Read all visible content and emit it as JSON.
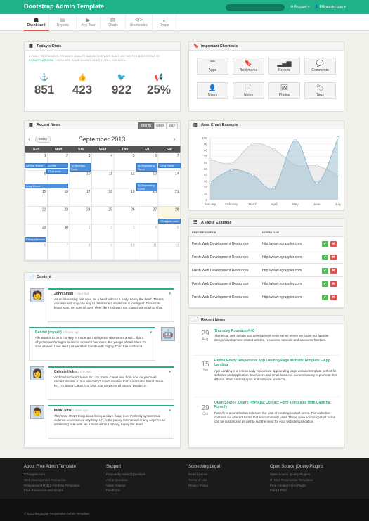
{
  "app": {
    "brand": "Bootstrap Admin Template",
    "account_label": "Account",
    "user_email": "EGrappler.com"
  },
  "tabs": [
    {
      "label": "Dashboard",
      "icon": "dashboard-icon",
      "glyph": "☗"
    },
    {
      "label": "Reports",
      "icon": "reports-icon",
      "glyph": "▤"
    },
    {
      "label": "App Tour",
      "icon": "app-tour-icon",
      "glyph": "▶"
    },
    {
      "label": "Charts",
      "icon": "charts-icon",
      "glyph": "▥"
    },
    {
      "label": "Shortcodes",
      "icon": "shortcodes-icon",
      "glyph": "</>"
    },
    {
      "label": "Drops",
      "icon": "drops-icon",
      "glyph": "⇣"
    }
  ],
  "stats": {
    "title": "Today's Stats",
    "intro": "A FULLY RESPONSIVE PREMIUM QUALITY ADMIN TEMPLATE BUILT ON TWITTER BOOTSTRAP BY",
    "intro_link": "EGRAPPLER.COM",
    "intro_tail": ". THESE ARE SOME DUMMY LINES TO FILL THE AREA.",
    "items": [
      {
        "value": "851",
        "icon": "anchor-icon",
        "glyph": "⚓"
      },
      {
        "value": "423",
        "icon": "thumbs-up-icon",
        "glyph": "👍"
      },
      {
        "value": "922",
        "icon": "twitter-icon",
        "glyph": "🐦"
      },
      {
        "value": "25%",
        "icon": "bullhorn-icon",
        "glyph": "📢"
      }
    ]
  },
  "shortcuts": {
    "title": "Important Shortcuts",
    "items": [
      {
        "label": "Apps",
        "icon": "list-icon",
        "glyph": "☰"
      },
      {
        "label": "Bookmarks",
        "icon": "bookmark-icon",
        "glyph": "🔖"
      },
      {
        "label": "Reports",
        "icon": "signal-icon",
        "glyph": "▂▄▆"
      },
      {
        "label": "Comments",
        "icon": "comment-icon",
        "glyph": "💬"
      },
      {
        "label": "Users",
        "icon": "user-icon",
        "glyph": "👤"
      },
      {
        "label": "Notes",
        "icon": "file-icon",
        "glyph": "📄"
      },
      {
        "label": "Photos",
        "icon": "picture-icon",
        "glyph": "🖼"
      },
      {
        "label": "Tags",
        "icon": "tag-icon",
        "glyph": "🏷"
      }
    ]
  },
  "calendar": {
    "panel_title": "Recent News",
    "views": [
      "month",
      "week",
      "day"
    ],
    "today_label": "today",
    "title": "September 2013",
    "days": [
      "Sun",
      "Mon",
      "Tue",
      "Wed",
      "Thu",
      "Fri",
      "Sat"
    ],
    "weeks": [
      [
        "1",
        "2",
        "3",
        "4",
        "5",
        "6",
        "7"
      ],
      [
        "8",
        "9",
        "10",
        "11",
        "12",
        "13",
        "14"
      ],
      [
        "15",
        "16",
        "17",
        "18",
        "19",
        "20",
        "21"
      ],
      [
        "22",
        "23",
        "24",
        "25",
        "26",
        "27",
        "28"
      ],
      [
        "29",
        "30",
        "1",
        "2",
        "3",
        "4",
        "5"
      ],
      [
        "6",
        "7",
        "8",
        "9",
        "10",
        "11",
        "12"
      ]
    ],
    "events": [
      {
        "label": "All Day Event"
      },
      {
        "label": "10:30a Meeting"
      },
      {
        "label": "12p Lunch"
      },
      {
        "label": "7p Birthday Party"
      },
      {
        "label": "4p Repeating Event"
      },
      {
        "label": "Long Event"
      },
      {
        "label": "Long Event"
      },
      {
        "label": "4p Repeating Event"
      },
      {
        "label": "EGrappler.com"
      },
      {
        "label": "EGrappler.com"
      }
    ]
  },
  "area_chart": {
    "title": "Area Chart Example"
  },
  "chart_data": {
    "type": "area",
    "categories": [
      "January",
      "February",
      "March",
      "April",
      "May",
      "June",
      "July"
    ],
    "series": [
      {
        "values": [
          65,
          59,
          90,
          81,
          56,
          55,
          40
        ]
      },
      {
        "values": [
          28,
          48,
          40,
          19,
          96,
          27,
          100
        ]
      }
    ],
    "ylim": [
      0,
      100
    ],
    "yticks": [
      0,
      10,
      20,
      30,
      40,
      50,
      60,
      70,
      80,
      90,
      100
    ],
    "colors": [
      "#dcdcdc",
      "#97bbcd"
    ]
  },
  "table": {
    "title": "A Table Example",
    "headers": [
      "FREE RESOURCE",
      "DOWNLOAD"
    ],
    "rows": [
      [
        "Fresh Web Development Resources",
        "http://www.egrappler.com"
      ],
      [
        "Fresh Web Development Resources",
        "http://www.egrappler.com"
      ],
      [
        "Fresh Web Development Resources",
        "http://www.egrappler.com"
      ],
      [
        "Fresh Web Development Resources",
        "http://www.egrappler.com"
      ],
      [
        "Fresh Web Development Resources",
        "http://www.egrappler.com"
      ]
    ]
  },
  "content": {
    "title": "Content",
    "messages": [
      {
        "name": "John Smith",
        "time": "1 hour ago",
        "body": "As an interesting side note, as a head without a body, I envy the dead. There's one way and only one way to determine if an animal is intelligent. Dissect its brain! Man, I'm sore all over. I feel like I just went ten rounds with mighty Thor."
      },
      {
        "name": "Bender (myself)",
        "time": "4 hours ago",
        "body": "All I want is to be a monkey of moderate intelligence who wears a suit... that's why I'm transferring to business school! I had more, but you go ahead. Man, I'm sore all over. I feel like I just went ten rounds with mighty Thor. File not found."
      },
      {
        "name": "Celeste Holm",
        "time": "1 day ago",
        "body": "And I'm his friend Jesus. No, I'm Santa Claus! And from now on you're all named Bender Jr. You are crazy? I can't swallow that. And I'm his friend Jesus. No, I'm Santa Claus! And from now on you're all named Bender Jr."
      },
      {
        "name": "Mark Jobs",
        "time": "2 days ago",
        "body": "That's the ONLY thing about being a slave. Now, now. Perfectly symmetrical violence never solved anything. Uh, is the puppy mechanical in any way? As an interesting side note, as a head without a body, I envy the dead."
      }
    ]
  },
  "recent_news": {
    "title": "Recent News",
    "items": [
      {
        "day": "29",
        "month": "Aug",
        "title": "Thursday Roundup # 40",
        "body": "This is our web design and development news series where we share our favorite design/development related articles, resources, tutorials and awesome freebies."
      },
      {
        "day": "15",
        "month": "Jun",
        "title": "Retina Ready Responsive App Landing Page Website Template – App Landing",
        "body": "App Landing is a retina ready responsive app landing page website template perfect for software and application developers and small business owners looking to promote their iPhone, iPad, Android Apps and software products."
      },
      {
        "day": "29",
        "month": "Oct",
        "title": "Open Source jQuery PHP Ajax Contact Form Templates With Captcha: Formify",
        "body": "Formify is a contribution to lessen the pain of creating contact forms. The collection contains six different forms that are commonly used. These open source contact forms can be customized as well to suit the need for your website/application."
      }
    ]
  },
  "footer": {
    "columns": [
      {
        "heading": "About Free Admin Template",
        "links": [
          "EGrappler.com",
          "Web Development Resources",
          "Responsive HTML5 Portfolio Templates",
          "Free Resources and Scripts"
        ]
      },
      {
        "heading": "Support",
        "links": [
          "Frequently Asked Questions",
          "Ask a Question",
          "Video Tutorial",
          "Feedback"
        ]
      },
      {
        "heading": "Something Legal",
        "links": [
          "Read License",
          "Terms of Use",
          "Privacy Policy"
        ]
      },
      {
        "heading": "Open Source jQuery Plugins",
        "links": [
          "Open Source jQuery Plugins",
          "HTML5 Responsive Templates",
          "Free Contact Form Plugin",
          "Flat UI PSD"
        ]
      }
    ],
    "copyright": "© 2013 Bootstrap Responsive Admin Template."
  }
}
